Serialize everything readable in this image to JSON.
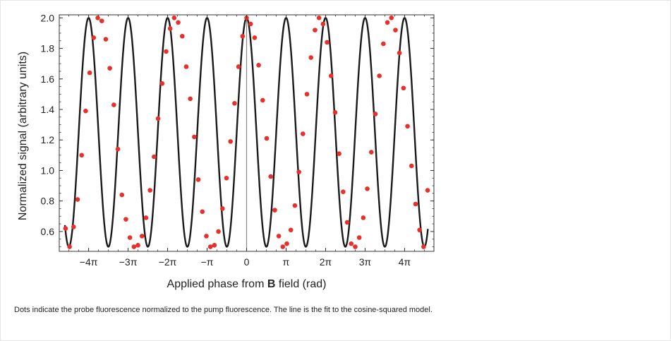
{
  "figure": {
    "caption": "Dots indicate the probe fluorescence normalized to the pump fluorescence. The line is the fit to the cosine-squared model."
  },
  "chart_data": {
    "type": "scatter",
    "xlabel_prefix": "Applied phase from ",
    "xlabel_bold": "B",
    "xlabel_suffix": " field (rad)",
    "ylabel": "Normalized signal (arbitrary units)",
    "xlim": [
      -14.9,
      14.9
    ],
    "ylim": [
      0.47,
      2.02
    ],
    "x_ticks": [
      {
        "value": -12.566,
        "label": "−4π"
      },
      {
        "value": -9.425,
        "label": "−3π"
      },
      {
        "value": -6.283,
        "label": "−2π"
      },
      {
        "value": -3.142,
        "label": "−π"
      },
      {
        "value": 0,
        "label": "0"
      },
      {
        "value": 3.142,
        "label": "π"
      },
      {
        "value": 6.283,
        "label": "2π"
      },
      {
        "value": 9.425,
        "label": "3π"
      },
      {
        "value": 12.566,
        "label": "4π"
      }
    ],
    "y_ticks": [
      {
        "value": 0.6,
        "label": "0.6"
      },
      {
        "value": 0.8,
        "label": "0.8"
      },
      {
        "value": 1.0,
        "label": "1.0"
      },
      {
        "value": 1.2,
        "label": "1.2"
      },
      {
        "value": 1.4,
        "label": "1.4"
      },
      {
        "value": 1.6,
        "label": "1.6"
      },
      {
        "value": 1.8,
        "label": "1.8"
      },
      {
        "value": 2.0,
        "label": "2.0"
      }
    ],
    "series": [
      {
        "kind": "points",
        "color": "#e8302a",
        "x": [
          -14.4,
          -14.08,
          -13.76,
          -13.44,
          -13.12,
          -12.8,
          -12.48,
          -12.16,
          -11.84,
          -11.52,
          -11.2,
          -10.88,
          -10.56,
          -10.24,
          -9.92,
          -9.6,
          -9.28,
          -8.96,
          -8.64,
          -8.32,
          -8.0,
          -7.68,
          -7.36,
          -7.04,
          -6.72,
          -6.4,
          -6.08,
          -5.76,
          -5.44,
          -5.12,
          -4.8,
          -4.48,
          -4.16,
          -3.84,
          -3.52,
          -3.2,
          -2.88,
          -2.56,
          -2.24,
          -1.92,
          -1.6,
          -1.28,
          -0.96,
          -0.64,
          -0.32,
          0.0,
          0.32,
          0.64,
          0.96,
          1.28,
          1.6,
          1.92,
          2.24,
          2.56,
          2.88,
          3.2,
          3.52,
          3.84,
          4.16,
          4.48,
          4.8,
          5.12,
          5.44,
          5.76,
          6.08,
          6.4,
          6.72,
          7.04,
          7.36,
          7.68,
          8.0,
          8.32,
          8.64,
          8.96,
          9.28,
          9.6,
          9.92,
          10.24,
          10.56,
          10.88,
          11.2,
          11.52,
          11.84,
          12.16,
          12.48,
          12.8,
          13.12,
          13.44,
          13.76,
          14.08,
          14.4
        ],
        "y": [
          0.62,
          0.5,
          0.63,
          0.81,
          1.1,
          1.39,
          1.64,
          1.87,
          2.0,
          1.98,
          1.86,
          1.67,
          1.43,
          1.14,
          0.84,
          0.68,
          0.56,
          0.5,
          0.51,
          0.57,
          0.69,
          0.87,
          1.09,
          1.34,
          1.57,
          1.78,
          1.93,
          2.0,
          1.97,
          1.88,
          1.68,
          1.47,
          1.22,
          0.94,
          0.73,
          0.57,
          0.5,
          0.51,
          0.6,
          0.75,
          0.95,
          1.19,
          1.44,
          1.68,
          1.88,
          2.0,
          1.96,
          1.87,
          1.69,
          1.46,
          1.21,
          0.96,
          0.74,
          0.57,
          0.5,
          0.52,
          0.61,
          0.77,
          0.99,
          1.24,
          1.5,
          1.74,
          1.92,
          2.0,
          1.96,
          1.84,
          1.62,
          1.38,
          1.11,
          0.86,
          0.66,
          0.52,
          0.5,
          0.56,
          0.69,
          0.88,
          1.12,
          1.37,
          1.62,
          1.83,
          1.97,
          2.0,
          1.92,
          1.77,
          1.54,
          1.29,
          1.03,
          0.78,
          0.61,
          0.5,
          0.87
        ]
      },
      {
        "kind": "fit-line",
        "color": "#1a1a1a",
        "model": "cosine-squared",
        "baseline": 0.5,
        "amplitude": 1.5,
        "period": 3.1416,
        "phase": 0.0
      }
    ]
  }
}
